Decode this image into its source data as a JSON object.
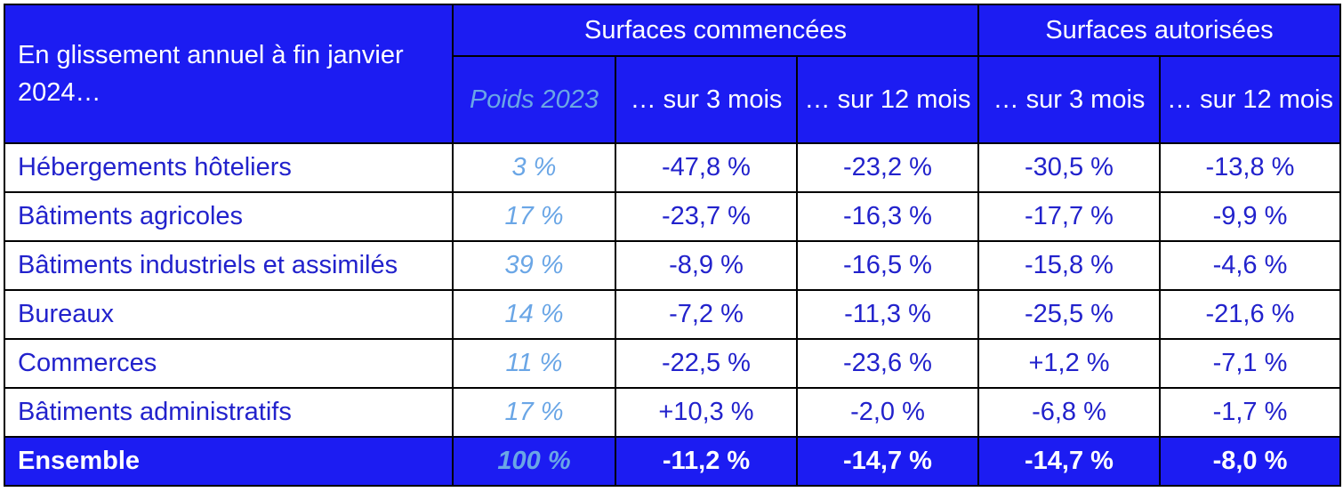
{
  "header": {
    "row_label": "En glissement annuel à fin janvier 2024…",
    "group_started": "Surfaces commencées",
    "group_authorized": "Surfaces autorisées",
    "weight_label": "Poids 2023",
    "col_3m_started": "… sur 3 mois",
    "col_12m_started": "… sur 12 mois",
    "col_3m_authorized": "… sur 3 mois",
    "col_12m_authorized": "… sur 12 mois"
  },
  "rows": [
    {
      "name": "Hébergements hôteliers",
      "weight": "3 %",
      "started_3m": "-47,8 %",
      "started_12m": "-23,2 %",
      "authorized_3m": "-30,5 %",
      "authorized_12m": "-13,8 %"
    },
    {
      "name": "Bâtiments agricoles",
      "weight": "17 %",
      "started_3m": "-23,7 %",
      "started_12m": "-16,3 %",
      "authorized_3m": "-17,7 %",
      "authorized_12m": "-9,9 %"
    },
    {
      "name": "Bâtiments industriels et assimilés",
      "weight": "39 %",
      "started_3m": "-8,9 %",
      "started_12m": "-16,5 %",
      "authorized_3m": "-15,8 %",
      "authorized_12m": "-4,6 %"
    },
    {
      "name": "Bureaux",
      "weight": "14 %",
      "started_3m": "-7,2 %",
      "started_12m": "-11,3 %",
      "authorized_3m": "-25,5 %",
      "authorized_12m": "-21,6 %"
    },
    {
      "name": "Commerces",
      "weight": "11 %",
      "started_3m": "-22,5 %",
      "started_12m": "-23,6 %",
      "authorized_3m": "+1,2 %",
      "authorized_12m": "-7,1 %"
    },
    {
      "name": "Bâtiments administratifs",
      "weight": "17 %",
      "started_3m": "+10,3 %",
      "started_12m": "-2,0 %",
      "authorized_3m": "-6,8 %",
      "authorized_12m": "-1,7 %"
    }
  ],
  "total": {
    "name": "Ensemble",
    "weight": "100 %",
    "started_3m": "-11,2 %",
    "started_12m": "-14,7 %",
    "authorized_3m": "-14,7 %",
    "authorized_12m": "-8,0 %"
  },
  "colors": {
    "header_bg": "#1c1cf2",
    "header_text": "#ffffff",
    "body_text": "#2222cc",
    "weight_text": "#6aa6e6",
    "border": "#000000"
  }
}
